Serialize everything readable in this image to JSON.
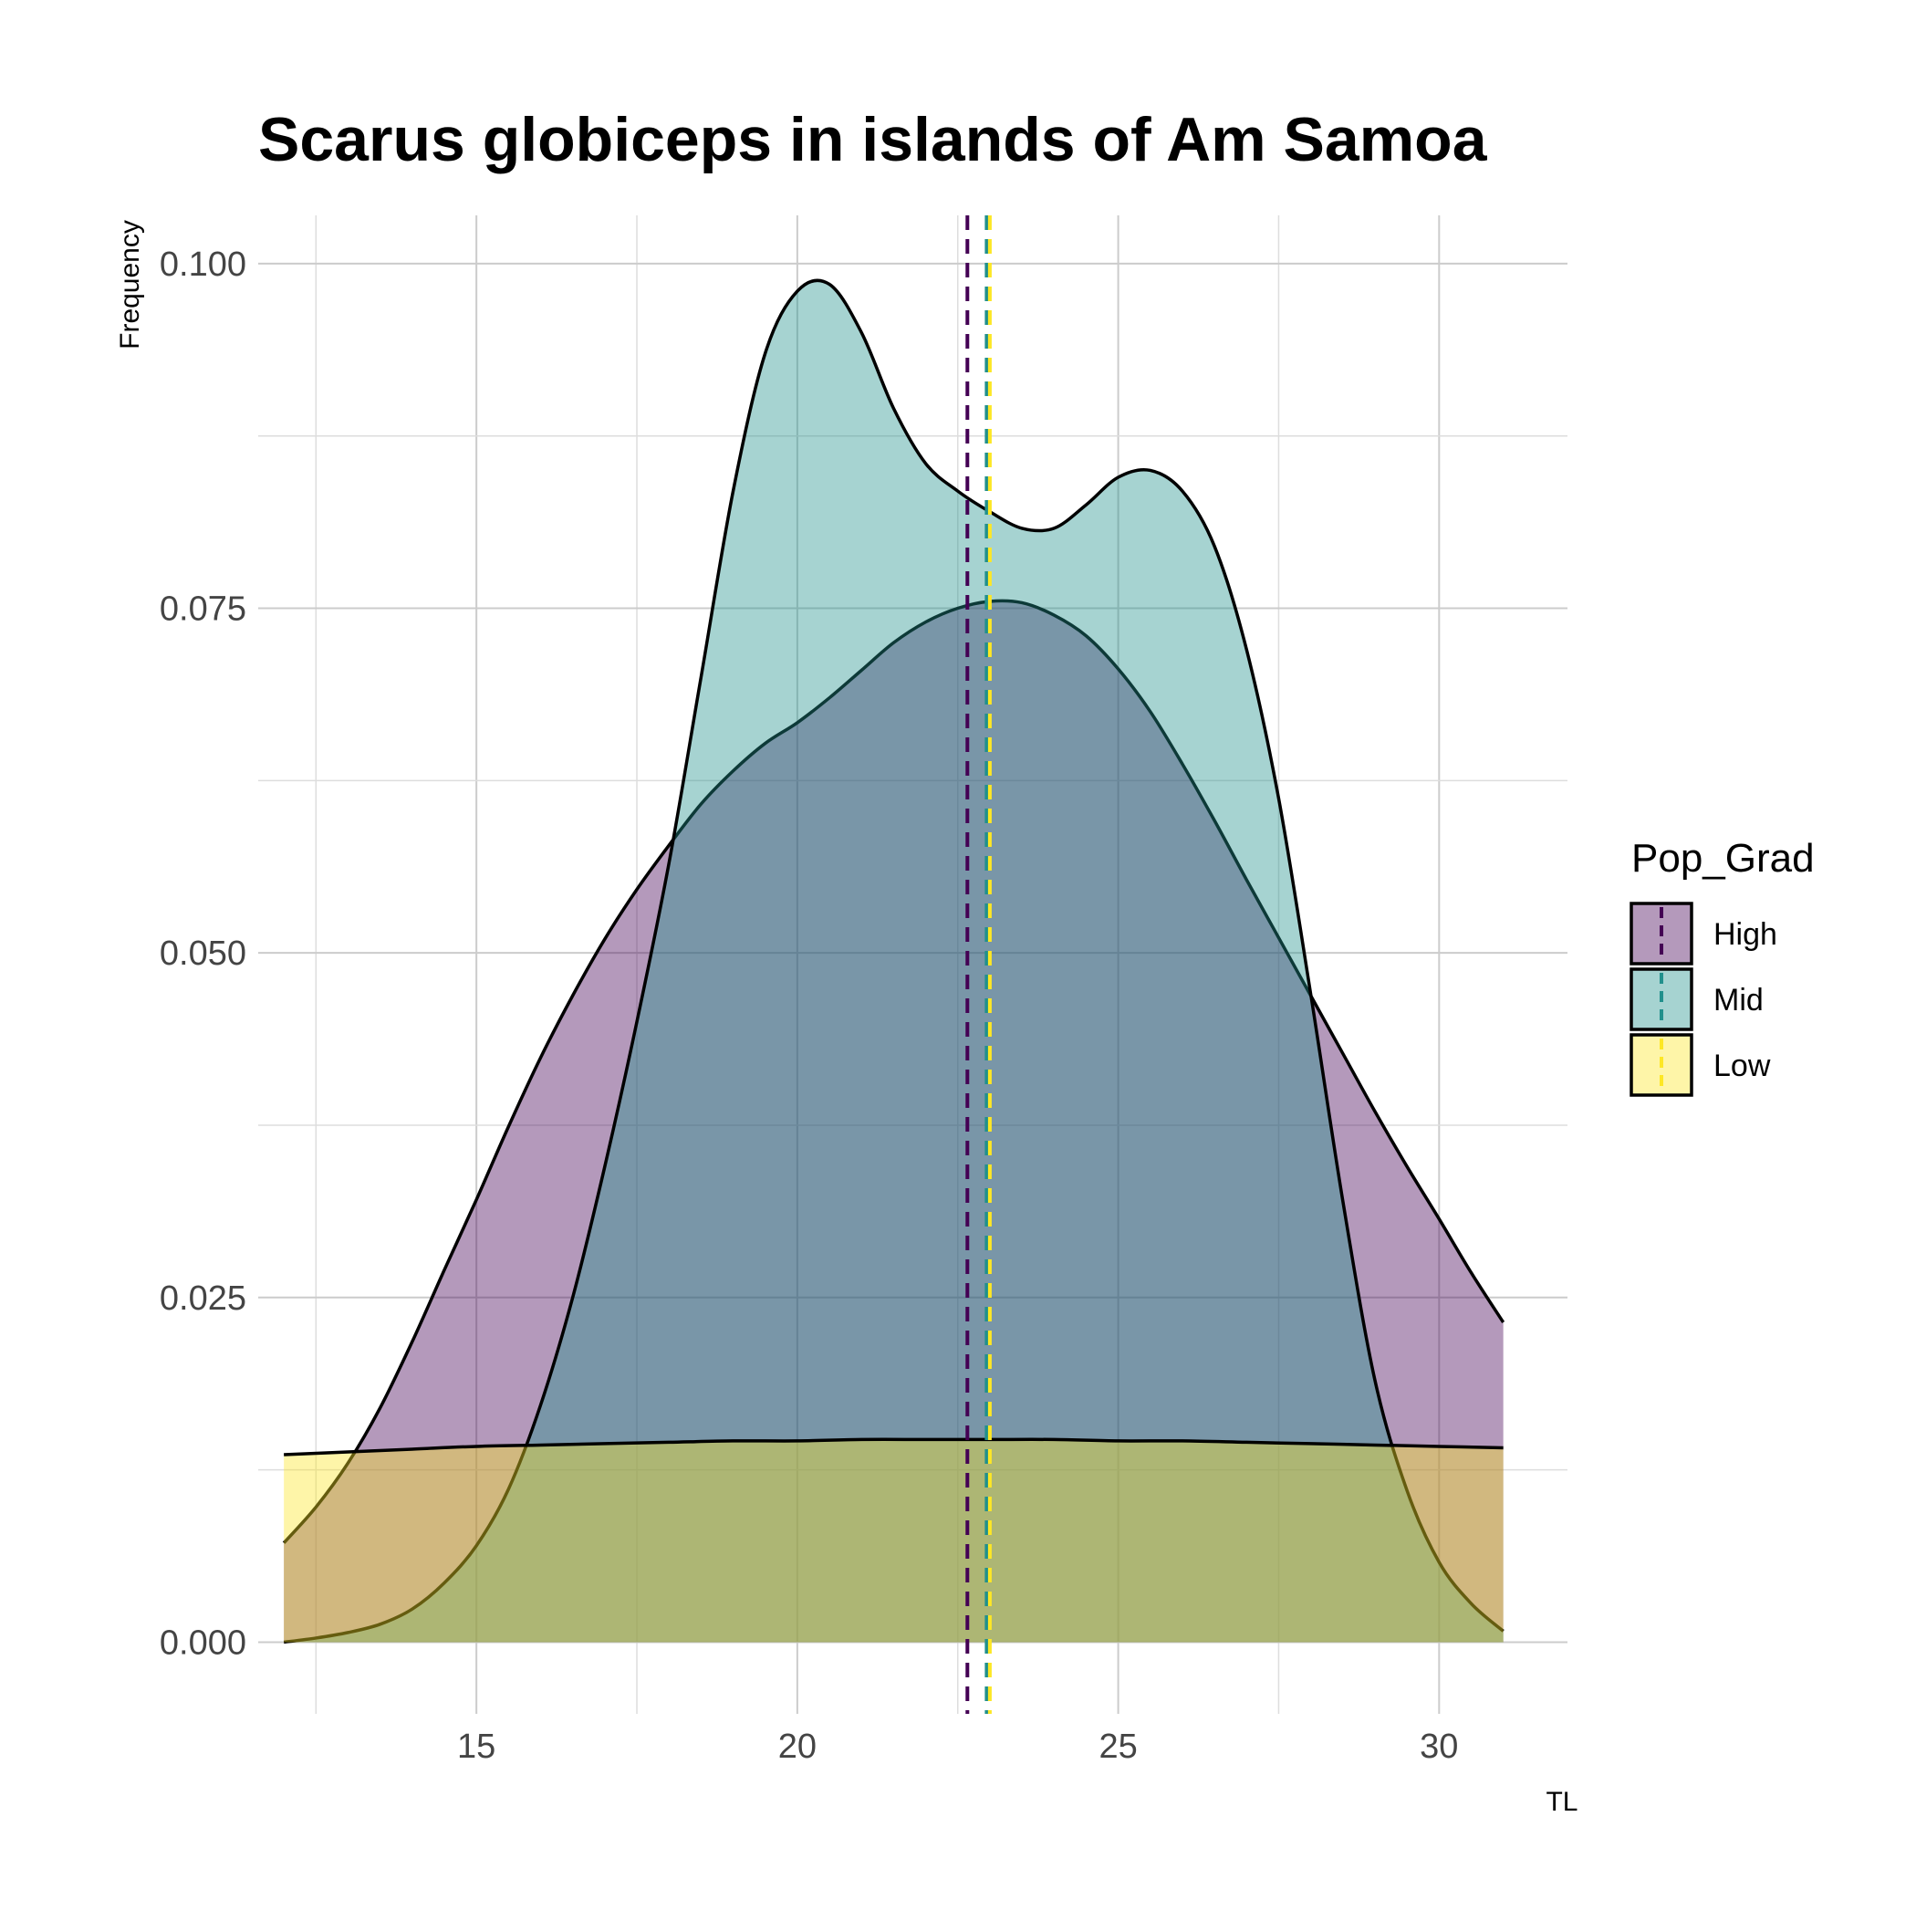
{
  "chart_data": {
    "type": "area",
    "title": "Scarus globiceps in islands of Am Samoa",
    "xlabel": "TL",
    "ylabel": "Frequency",
    "xlim": [
      11.6,
      32.0
    ],
    "ylim": [
      -0.0052,
      0.1035
    ],
    "x_ticks": [
      15,
      20,
      25,
      30
    ],
    "y_ticks": [
      0.0,
      0.025,
      0.05,
      0.075,
      0.1
    ],
    "x_tick_labels": [
      "15",
      "20",
      "25",
      "30"
    ],
    "y_tick_labels": [
      "0.000",
      "0.025",
      "0.050",
      "0.075",
      "0.100"
    ],
    "grid": true,
    "legend": {
      "title": "Pop_Grad",
      "position": "right"
    },
    "series": [
      {
        "name": "High",
        "fill": "#440154",
        "line": "#440154",
        "mean": 22.65,
        "x": [
          12.0,
          12.5,
          13.0,
          13.5,
          14.0,
          14.5,
          15.0,
          15.5,
          16.0,
          16.5,
          17.0,
          17.5,
          18.0,
          18.5,
          19.0,
          19.5,
          20.0,
          20.5,
          21.0,
          21.5,
          22.0,
          22.5,
          23.0,
          23.5,
          24.0,
          24.5,
          25.0,
          25.5,
          26.0,
          26.5,
          27.0,
          27.5,
          28.0,
          28.5,
          29.0,
          29.5,
          30.0,
          30.5,
          31.0
        ],
        "y": [
          0.0072,
          0.0098,
          0.013,
          0.017,
          0.0218,
          0.027,
          0.0321,
          0.0374,
          0.0424,
          0.0469,
          0.051,
          0.0546,
          0.0578,
          0.0608,
          0.0632,
          0.0652,
          0.0667,
          0.0685,
          0.0705,
          0.0725,
          0.074,
          0.075,
          0.0755,
          0.0754,
          0.0745,
          0.073,
          0.0706,
          0.0675,
          0.0637,
          0.0596,
          0.0553,
          0.0511,
          0.0469,
          0.0427,
          0.0385,
          0.0345,
          0.0307,
          0.0268,
          0.0232
        ]
      },
      {
        "name": "Mid",
        "fill": "#21908C",
        "line": "#21908C",
        "mean": 22.95,
        "x": [
          12.0,
          12.5,
          13.0,
          13.5,
          14.0,
          14.5,
          15.0,
          15.5,
          16.0,
          16.5,
          17.0,
          17.5,
          18.0,
          18.5,
          19.0,
          19.5,
          20.0,
          20.5,
          21.0,
          21.5,
          22.0,
          22.5,
          23.0,
          23.5,
          24.0,
          24.5,
          25.0,
          25.5,
          26.0,
          26.5,
          27.0,
          27.5,
          28.0,
          28.5,
          29.0,
          29.5,
          30.0,
          30.5,
          31.0
        ],
        "y": [
          0.0,
          0.0003,
          0.0007,
          0.0013,
          0.0024,
          0.0043,
          0.007,
          0.0111,
          0.0172,
          0.025,
          0.0345,
          0.045,
          0.0565,
          0.07,
          0.0835,
          0.0935,
          0.098,
          0.0985,
          0.095,
          0.0895,
          0.0855,
          0.0835,
          0.082,
          0.0808,
          0.0808,
          0.0825,
          0.0845,
          0.085,
          0.0835,
          0.0795,
          0.072,
          0.0612,
          0.047,
          0.032,
          0.019,
          0.011,
          0.0058,
          0.0028,
          0.0008
        ]
      },
      {
        "name": "Low",
        "fill": "#FDE725",
        "line": "#FDE725",
        "mean": 23.0,
        "x": [
          12.0,
          13.0,
          14.0,
          15.0,
          16.0,
          17.0,
          18.0,
          19.0,
          20.0,
          21.0,
          22.0,
          23.0,
          24.0,
          25.0,
          26.0,
          27.0,
          28.0,
          29.0,
          30.0,
          31.0
        ],
        "y": [
          0.0136,
          0.0138,
          0.014,
          0.0142,
          0.0143,
          0.0144,
          0.0145,
          0.0146,
          0.0146,
          0.0147,
          0.0147,
          0.0147,
          0.0147,
          0.0146,
          0.0146,
          0.0145,
          0.0144,
          0.0143,
          0.0142,
          0.0141
        ]
      }
    ]
  }
}
